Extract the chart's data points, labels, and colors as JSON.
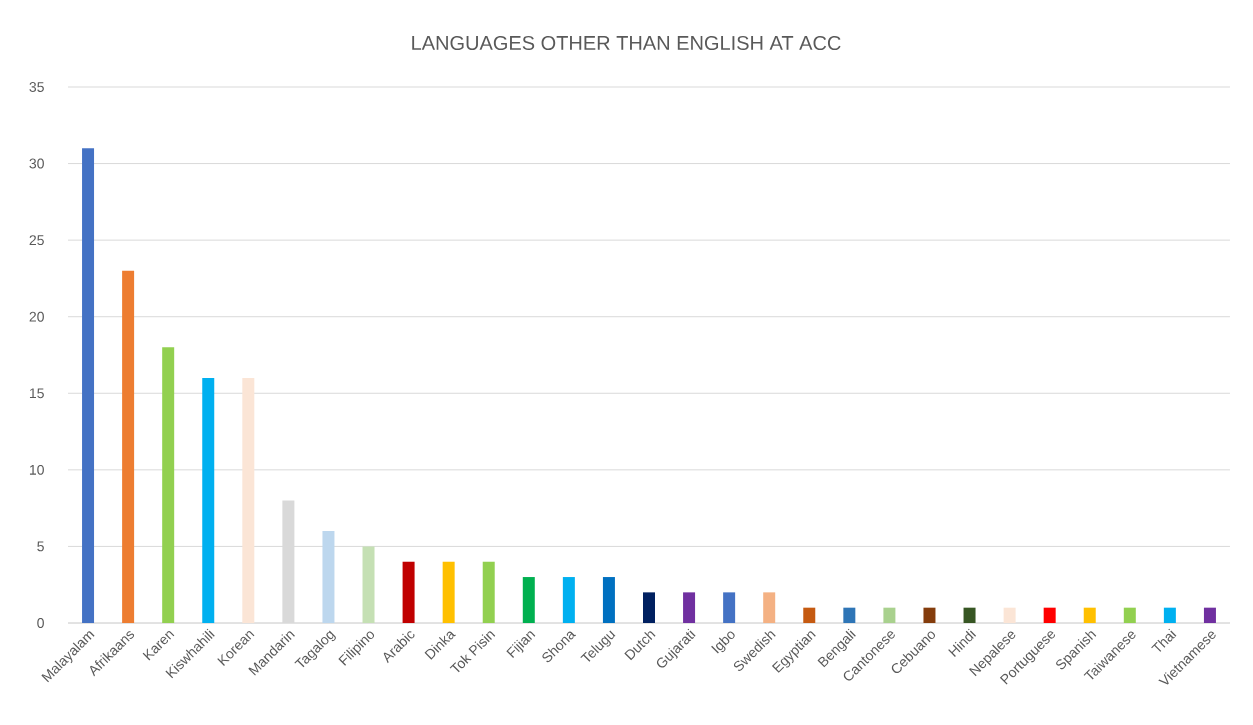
{
  "chart_data": {
    "type": "bar",
    "title": "LANGUAGES OTHER THAN ENGLISH AT ACC",
    "categories": [
      "Malayalam",
      "Afrikaans",
      "Karen",
      "Kiswhahili",
      "Korean",
      "Mandarin",
      "Tagalog",
      "Filipino",
      "Arabic",
      "Dinka",
      "Tok Pisin",
      "Fijian",
      "Shona",
      "Telugu",
      "Dutch",
      "Gujarati",
      "Igbo",
      "Swedish",
      "Egyptian",
      "Bengali",
      "Cantonese",
      "Cebuano",
      "Hindi",
      "Nepalese",
      "Portuguese",
      "Spanish",
      "Taiwanese",
      "Thai",
      "Vietnamese"
    ],
    "values": [
      31,
      23,
      18,
      16,
      16,
      8,
      6,
      5,
      4,
      4,
      4,
      3,
      3,
      3,
      2,
      2,
      2,
      2,
      1,
      1,
      1,
      1,
      1,
      1,
      1,
      1,
      1,
      1,
      1
    ],
    "colors": [
      "#4472c4",
      "#ed7d31",
      "#92d050",
      "#00b0f0",
      "#fbe5d6",
      "#d9d9d9",
      "#bdd7ee",
      "#c5e0b4",
      "#c00000",
      "#ffc000",
      "#92d050",
      "#00b050",
      "#00b0f0",
      "#0070c0",
      "#002060",
      "#7030a0",
      "#4472c4",
      "#f4b183",
      "#c55a11",
      "#2e75b6",
      "#a9d18e",
      "#843c0c",
      "#375623",
      "#fbe5d6",
      "#ff0000",
      "#ffc000",
      "#92d050",
      "#00b0f0",
      "#7030a0"
    ],
    "ylim": [
      0,
      35
    ],
    "yticks": [
      0,
      5,
      10,
      15,
      20,
      25,
      30,
      35
    ],
    "grid": "y"
  }
}
